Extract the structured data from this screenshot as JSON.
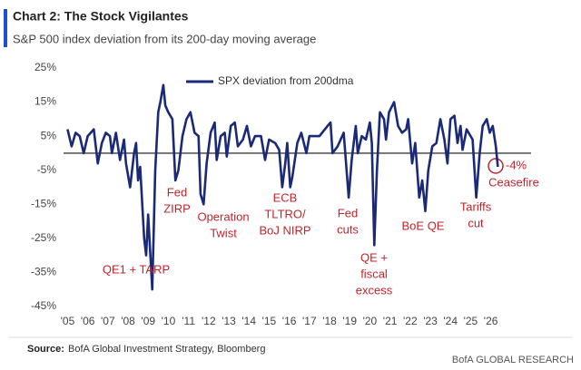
{
  "chart_data": {
    "type": "line",
    "title": "Chart 2: The Stock Vigilantes",
    "subtitle": "S&P 500 index deviation from its 200-day moving average",
    "source_label": "Source:",
    "source": "BofA Global Investment Strategy, Bloomberg",
    "brand": "BofA GLOBAL RESEARCH",
    "series": [
      {
        "name": "SPX deviation from 200dma",
        "color": "#1a2a78",
        "x": [
          2005.0,
          2005.2,
          2005.4,
          2005.6,
          2005.8,
          2006.0,
          2006.3,
          2006.5,
          2006.7,
          2006.9,
          2007.1,
          2007.2,
          2007.4,
          2007.6,
          2007.8,
          2007.9,
          2008.1,
          2008.3,
          2008.4,
          2008.5,
          2008.6,
          2008.8,
          2008.9,
          2009.0,
          2009.2,
          2009.35,
          2009.5,
          2009.6,
          2009.75,
          2009.85,
          2010.0,
          2010.2,
          2010.35,
          2010.5,
          2010.7,
          2010.9,
          2011.1,
          2011.3,
          2011.5,
          2011.6,
          2011.75,
          2011.9,
          2012.1,
          2012.3,
          2012.4,
          2012.6,
          2012.8,
          2012.9,
          2013.1,
          2013.3,
          2013.45,
          2013.7,
          2013.9,
          2014.1,
          2014.3,
          2014.6,
          2014.8,
          2015.0,
          2015.3,
          2015.5,
          2015.65,
          2015.8,
          2015.9,
          2016.05,
          2016.15,
          2016.4,
          2016.6,
          2016.85,
          2017.0,
          2017.5,
          2017.9,
          2018.05,
          2018.15,
          2018.4,
          2018.7,
          2018.95,
          2019.1,
          2019.3,
          2019.4,
          2019.6,
          2019.8,
          2020.0,
          2020.1,
          2020.22,
          2020.35,
          2020.5,
          2020.7,
          2020.8,
          2020.95,
          2021.2,
          2021.4,
          2021.6,
          2021.8,
          2021.9,
          2022.1,
          2022.25,
          2022.45,
          2022.6,
          2022.75,
          2022.9,
          2023.1,
          2023.3,
          2023.5,
          2023.7,
          2023.85,
          2024.0,
          2024.2,
          2024.35,
          2024.5,
          2024.6,
          2024.8,
          2025.0,
          2025.1,
          2025.28,
          2025.45,
          2025.6,
          2025.8,
          2025.95,
          2026.1,
          2026.25,
          2026.35
        ],
        "values": [
          7,
          2,
          6,
          5,
          0,
          5,
          7,
          -3,
          3,
          6,
          5,
          0,
          6,
          -2,
          4,
          -3,
          -10,
          0,
          3,
          -8,
          -4,
          -25,
          -30,
          -18,
          -40,
          -5,
          12,
          15,
          20,
          14,
          12,
          10,
          -8,
          -5,
          5,
          10,
          12,
          6,
          5,
          -12,
          -15,
          -3,
          6,
          9,
          -2,
          5,
          6,
          -1,
          8,
          9,
          2,
          4,
          8,
          2,
          5,
          5,
          -2,
          4,
          3,
          1,
          -10,
          -3,
          3,
          -10,
          -7,
          3,
          6,
          0,
          5,
          5,
          8,
          9,
          0,
          2,
          6,
          -13,
          -2,
          8,
          0,
          5,
          4,
          9,
          3,
          -27,
          -5,
          12,
          10,
          4,
          12,
          15,
          8,
          6,
          7,
          10,
          -3,
          3,
          -13,
          -8,
          -17,
          -5,
          2,
          3,
          10,
          4,
          -3,
          10,
          11,
          3,
          8,
          1,
          7,
          5,
          4,
          -13,
          0,
          8,
          10,
          6,
          8,
          2,
          -4
        ]
      }
    ],
    "xlim": [
      2004.8,
      2028
    ],
    "ylim": [
      -45,
      25
    ],
    "xticks": [
      {
        "value": 2005,
        "label": "'05"
      },
      {
        "value": 2006,
        "label": "'06"
      },
      {
        "value": 2007,
        "label": "'07"
      },
      {
        "value": 2008,
        "label": "'08"
      },
      {
        "value": 2009,
        "label": "'09"
      },
      {
        "value": 2010,
        "label": "'10"
      },
      {
        "value": 2011,
        "label": "'11"
      },
      {
        "value": 2012,
        "label": "'12"
      },
      {
        "value": 2013,
        "label": "'13"
      },
      {
        "value": 2014,
        "label": "'14"
      },
      {
        "value": 2015,
        "label": "'15"
      },
      {
        "value": 2016,
        "label": "'16"
      },
      {
        "value": 2017,
        "label": "'17"
      },
      {
        "value": 2018,
        "label": "'18"
      },
      {
        "value": 2019,
        "label": "'19"
      },
      {
        "value": 2020,
        "label": "'20"
      },
      {
        "value": 2021,
        "label": "'21"
      },
      {
        "value": 2022,
        "label": "'22"
      },
      {
        "value": 2023,
        "label": "'23"
      },
      {
        "value": 2024,
        "label": "'24"
      },
      {
        "value": 2025,
        "label": "'25"
      },
      {
        "value": 2026,
        "label": "'26"
      }
    ],
    "yticks": [
      {
        "value": 25,
        "label": "25%"
      },
      {
        "value": 15,
        "label": "15%"
      },
      {
        "value": 5,
        "label": "5%"
      },
      {
        "value": -5,
        "label": "-5%"
      },
      {
        "value": -15,
        "label": "-15%"
      },
      {
        "value": -25,
        "label": "-25%"
      },
      {
        "value": -35,
        "label": "-35%"
      },
      {
        "value": -45,
        "label": "-45%"
      }
    ],
    "annotations": [
      [
        "QE1 + TARP"
      ],
      [
        "Fed",
        "ZIRP"
      ],
      [
        "Operation",
        "Twist"
      ],
      [
        "ECB",
        "TLTRO/",
        "BoJ NIRP"
      ],
      [
        "Fed",
        "cuts"
      ],
      [
        "QE +",
        "fiscal",
        "excess"
      ],
      [
        "BoE QE"
      ],
      [
        "Tariffs",
        "cut"
      ],
      [
        "-4%"
      ],
      [
        "Ceasefire"
      ]
    ]
  }
}
